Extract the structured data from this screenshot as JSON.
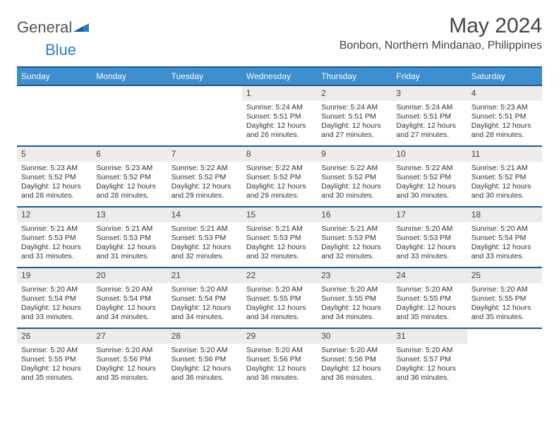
{
  "logo": {
    "text1": "General",
    "text2": "Blue"
  },
  "title": "May 2024",
  "location": "Bonbon, Northern Mindanao, Philippines",
  "days_of_week": [
    "Sunday",
    "Monday",
    "Tuesday",
    "Wednesday",
    "Thursday",
    "Friday",
    "Saturday"
  ],
  "colors": {
    "header_bg": "#3d8ecf",
    "border": "#1f5a8e",
    "daynum_bg": "#ececec",
    "text": "#444444"
  },
  "font": {
    "title_size": 30,
    "location_size": 16,
    "dow_size": 12,
    "body_size": 10.5
  },
  "weeks": [
    [
      {
        "n": "",
        "lines": []
      },
      {
        "n": "",
        "lines": []
      },
      {
        "n": "",
        "lines": []
      },
      {
        "n": "1",
        "lines": [
          "Sunrise: 5:24 AM",
          "Sunset: 5:51 PM",
          "Daylight: 12 hours",
          "and 26 minutes."
        ]
      },
      {
        "n": "2",
        "lines": [
          "Sunrise: 5:24 AM",
          "Sunset: 5:51 PM",
          "Daylight: 12 hours",
          "and 27 minutes."
        ]
      },
      {
        "n": "3",
        "lines": [
          "Sunrise: 5:24 AM",
          "Sunset: 5:51 PM",
          "Daylight: 12 hours",
          "and 27 minutes."
        ]
      },
      {
        "n": "4",
        "lines": [
          "Sunrise: 5:23 AM",
          "Sunset: 5:51 PM",
          "Daylight: 12 hours",
          "and 28 minutes."
        ]
      }
    ],
    [
      {
        "n": "5",
        "lines": [
          "Sunrise: 5:23 AM",
          "Sunset: 5:52 PM",
          "Daylight: 12 hours",
          "and 28 minutes."
        ]
      },
      {
        "n": "6",
        "lines": [
          "Sunrise: 5:23 AM",
          "Sunset: 5:52 PM",
          "Daylight: 12 hours",
          "and 28 minutes."
        ]
      },
      {
        "n": "7",
        "lines": [
          "Sunrise: 5:22 AM",
          "Sunset: 5:52 PM",
          "Daylight: 12 hours",
          "and 29 minutes."
        ]
      },
      {
        "n": "8",
        "lines": [
          "Sunrise: 5:22 AM",
          "Sunset: 5:52 PM",
          "Daylight: 12 hours",
          "and 29 minutes."
        ]
      },
      {
        "n": "9",
        "lines": [
          "Sunrise: 5:22 AM",
          "Sunset: 5:52 PM",
          "Daylight: 12 hours",
          "and 30 minutes."
        ]
      },
      {
        "n": "10",
        "lines": [
          "Sunrise: 5:22 AM",
          "Sunset: 5:52 PM",
          "Daylight: 12 hours",
          "and 30 minutes."
        ]
      },
      {
        "n": "11",
        "lines": [
          "Sunrise: 5:21 AM",
          "Sunset: 5:52 PM",
          "Daylight: 12 hours",
          "and 30 minutes."
        ]
      }
    ],
    [
      {
        "n": "12",
        "lines": [
          "Sunrise: 5:21 AM",
          "Sunset: 5:53 PM",
          "Daylight: 12 hours",
          "and 31 minutes."
        ]
      },
      {
        "n": "13",
        "lines": [
          "Sunrise: 5:21 AM",
          "Sunset: 5:53 PM",
          "Daylight: 12 hours",
          "and 31 minutes."
        ]
      },
      {
        "n": "14",
        "lines": [
          "Sunrise: 5:21 AM",
          "Sunset: 5:53 PM",
          "Daylight: 12 hours",
          "and 32 minutes."
        ]
      },
      {
        "n": "15",
        "lines": [
          "Sunrise: 5:21 AM",
          "Sunset: 5:53 PM",
          "Daylight: 12 hours",
          "and 32 minutes."
        ]
      },
      {
        "n": "16",
        "lines": [
          "Sunrise: 5:21 AM",
          "Sunset: 5:53 PM",
          "Daylight: 12 hours",
          "and 32 minutes."
        ]
      },
      {
        "n": "17",
        "lines": [
          "Sunrise: 5:20 AM",
          "Sunset: 5:53 PM",
          "Daylight: 12 hours",
          "and 33 minutes."
        ]
      },
      {
        "n": "18",
        "lines": [
          "Sunrise: 5:20 AM",
          "Sunset: 5:54 PM",
          "Daylight: 12 hours",
          "and 33 minutes."
        ]
      }
    ],
    [
      {
        "n": "19",
        "lines": [
          "Sunrise: 5:20 AM",
          "Sunset: 5:54 PM",
          "Daylight: 12 hours",
          "and 33 minutes."
        ]
      },
      {
        "n": "20",
        "lines": [
          "Sunrise: 5:20 AM",
          "Sunset: 5:54 PM",
          "Daylight: 12 hours",
          "and 34 minutes."
        ]
      },
      {
        "n": "21",
        "lines": [
          "Sunrise: 5:20 AM",
          "Sunset: 5:54 PM",
          "Daylight: 12 hours",
          "and 34 minutes."
        ]
      },
      {
        "n": "22",
        "lines": [
          "Sunrise: 5:20 AM",
          "Sunset: 5:55 PM",
          "Daylight: 12 hours",
          "and 34 minutes."
        ]
      },
      {
        "n": "23",
        "lines": [
          "Sunrise: 5:20 AM",
          "Sunset: 5:55 PM",
          "Daylight: 12 hours",
          "and 34 minutes."
        ]
      },
      {
        "n": "24",
        "lines": [
          "Sunrise: 5:20 AM",
          "Sunset: 5:55 PM",
          "Daylight: 12 hours",
          "and 35 minutes."
        ]
      },
      {
        "n": "25",
        "lines": [
          "Sunrise: 5:20 AM",
          "Sunset: 5:55 PM",
          "Daylight: 12 hours",
          "and 35 minutes."
        ]
      }
    ],
    [
      {
        "n": "26",
        "lines": [
          "Sunrise: 5:20 AM",
          "Sunset: 5:55 PM",
          "Daylight: 12 hours",
          "and 35 minutes."
        ]
      },
      {
        "n": "27",
        "lines": [
          "Sunrise: 5:20 AM",
          "Sunset: 5:56 PM",
          "Daylight: 12 hours",
          "and 35 minutes."
        ]
      },
      {
        "n": "28",
        "lines": [
          "Sunrise: 5:20 AM",
          "Sunset: 5:56 PM",
          "Daylight: 12 hours",
          "and 36 minutes."
        ]
      },
      {
        "n": "29",
        "lines": [
          "Sunrise: 5:20 AM",
          "Sunset: 5:56 PM",
          "Daylight: 12 hours",
          "and 36 minutes."
        ]
      },
      {
        "n": "30",
        "lines": [
          "Sunrise: 5:20 AM",
          "Sunset: 5:56 PM",
          "Daylight: 12 hours",
          "and 36 minutes."
        ]
      },
      {
        "n": "31",
        "lines": [
          "Sunrise: 5:20 AM",
          "Sunset: 5:57 PM",
          "Daylight: 12 hours",
          "and 36 minutes."
        ]
      },
      {
        "n": "",
        "lines": []
      }
    ]
  ]
}
